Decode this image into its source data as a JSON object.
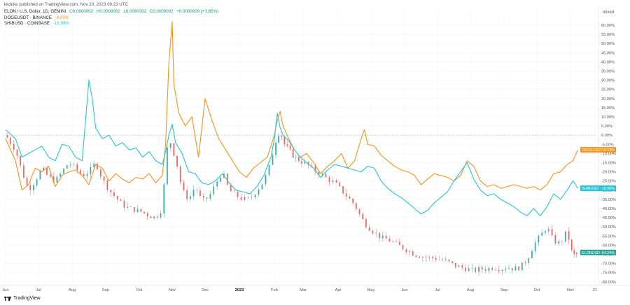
{
  "header": {
    "published_text": "kkduke published on TradingView.com, Nov 20, 2023 09:23 UTC"
  },
  "legend": {
    "main": {
      "symbol": "ELON / U.S. Dollar, 1D, GEMINI",
      "o": "O0.0000002",
      "h": "H0.0000002",
      "l": "L0.0000002",
      "c": "C0.0000002",
      "change": "+0.0000000 (+3.85%)"
    },
    "doge": {
      "name": "DOGEUSDT · BINANCE",
      "change": "-8.03%"
    },
    "shib": {
      "name": "SHIBUSD · COINBASE",
      "change": "-18.99%"
    }
  },
  "mode_label": "mixed",
  "footer": {
    "brand": "TradingView"
  },
  "colors": {
    "doge": "#f7931a",
    "shib": "#26c6da",
    "up": "#26a69a",
    "down": "#ef5350",
    "elon_badge": "#26a69a"
  },
  "chart_data": {
    "type": "line",
    "title": "ELON / U.S. Dollar, 1D, GEMINI",
    "ylabel": "",
    "y_unit": "%",
    "ylim": [
      -80,
      60
    ],
    "yticks": [
      "60.00%",
      "55.00%",
      "50.00%",
      "45.00%",
      "40.00%",
      "35.00%",
      "30.00%",
      "25.00%",
      "20.00%",
      "15.00%",
      "10.00%",
      "5.00%",
      "0.00%",
      "-5.00%",
      "-10.00%",
      "-15.00%",
      "-20.00%",
      "-25.00%",
      "-30.00%",
      "-35.00%",
      "-40.00%",
      "-45.00%",
      "-50.00%",
      "-55.00%",
      "-60.00%",
      "-65.00%",
      "-70.00%",
      "-75.00%",
      "-80.00%"
    ],
    "xticks": [
      {
        "label": "Jun",
        "bold": false
      },
      {
        "label": "Jul",
        "bold": false
      },
      {
        "label": "Aug",
        "bold": false
      },
      {
        "label": "Sep",
        "bold": false
      },
      {
        "label": "Oct",
        "bold": false
      },
      {
        "label": "Nov",
        "bold": false
      },
      {
        "label": "Dec",
        "bold": false
      },
      {
        "label": "2023",
        "bold": true
      },
      {
        "label": "Feb",
        "bold": false
      },
      {
        "label": "Mar",
        "bold": false
      },
      {
        "label": "Apr",
        "bold": false
      },
      {
        "label": "May",
        "bold": false
      },
      {
        "label": "Jun",
        "bold": false
      },
      {
        "label": "Jul",
        "bold": false
      },
      {
        "label": "Aug",
        "bold": false
      },
      {
        "label": "Sep",
        "bold": false
      },
      {
        "label": "Oct",
        "bold": false
      },
      {
        "label": "Nov",
        "bold": false
      },
      {
        "label": "21",
        "bold": false
      }
    ],
    "x_months_index": [
      0,
      1,
      2,
      3,
      4,
      5,
      6,
      7,
      8,
      9,
      10,
      11,
      12,
      13,
      14,
      15,
      16,
      17,
      17.7
    ],
    "series": [
      {
        "name": "DOGEUSDT",
        "color": "#f7931a",
        "last_label": "DOGEUSDT",
        "last_value": "-8.03%",
        "values": [
          [
            0,
            -2
          ],
          [
            0.3,
            -14
          ],
          [
            0.5,
            -30
          ],
          [
            0.7,
            -27
          ],
          [
            0.9,
            -18
          ],
          [
            1.1,
            -20
          ],
          [
            1.3,
            -17
          ],
          [
            1.5,
            -28
          ],
          [
            1.7,
            -22
          ],
          [
            1.9,
            -20
          ],
          [
            2.1,
            -19
          ],
          [
            2.3,
            -22
          ],
          [
            2.5,
            -27
          ],
          [
            2.7,
            -16
          ],
          [
            2.9,
            -18
          ],
          [
            3.1,
            -25
          ],
          [
            3.3,
            -21
          ],
          [
            3.5,
            -24
          ],
          [
            3.7,
            -26
          ],
          [
            3.9,
            -23
          ],
          [
            4.1,
            -24
          ],
          [
            4.3,
            -21
          ],
          [
            4.5,
            -26
          ],
          [
            4.7,
            -22
          ],
          [
            4.8,
            -5
          ],
          [
            4.9,
            40
          ],
          [
            5.0,
            62
          ],
          [
            5.05,
            28
          ],
          [
            5.2,
            12
          ],
          [
            5.4,
            5
          ],
          [
            5.6,
            10
          ],
          [
            5.8,
            -12
          ],
          [
            6.0,
            20
          ],
          [
            6.2,
            8
          ],
          [
            6.4,
            -2
          ],
          [
            6.6,
            -8
          ],
          [
            6.8,
            -14
          ],
          [
            7.0,
            -20
          ],
          [
            7.2,
            -23
          ],
          [
            7.4,
            -18
          ],
          [
            7.6,
            -15
          ],
          [
            7.8,
            -12
          ],
          [
            8.0,
            0
          ],
          [
            8.1,
            8
          ],
          [
            8.2,
            13
          ],
          [
            8.3,
            5
          ],
          [
            8.5,
            -2
          ],
          [
            8.7,
            -8
          ],
          [
            8.9,
            -12
          ],
          [
            9.1,
            -10
          ],
          [
            9.3,
            -15
          ],
          [
            9.5,
            -21
          ],
          [
            9.7,
            -17
          ],
          [
            9.9,
            -14
          ],
          [
            10.1,
            -10
          ],
          [
            10.3,
            -18
          ],
          [
            10.5,
            -14
          ],
          [
            10.7,
            -2
          ],
          [
            10.8,
            3
          ],
          [
            10.9,
            -5
          ],
          [
            11.1,
            -6
          ],
          [
            11.3,
            -11
          ],
          [
            11.5,
            -14
          ],
          [
            11.7,
            -17
          ],
          [
            11.9,
            -19
          ],
          [
            12.1,
            -20
          ],
          [
            12.3,
            -22
          ],
          [
            12.5,
            -27
          ],
          [
            12.7,
            -24
          ],
          [
            12.9,
            -21
          ],
          [
            13.1,
            -22
          ],
          [
            13.3,
            -23
          ],
          [
            13.5,
            -25
          ],
          [
            13.7,
            -22
          ],
          [
            13.9,
            -14
          ],
          [
            14.1,
            -17
          ],
          [
            14.3,
            -25
          ],
          [
            14.5,
            -28
          ],
          [
            14.7,
            -27
          ],
          [
            14.9,
            -29
          ],
          [
            15.1,
            -28
          ],
          [
            15.3,
            -27
          ],
          [
            15.5,
            -28
          ],
          [
            15.7,
            -29
          ],
          [
            15.9,
            -28
          ],
          [
            16.1,
            -30
          ],
          [
            16.3,
            -27
          ],
          [
            16.5,
            -21
          ],
          [
            16.7,
            -20
          ],
          [
            16.9,
            -16
          ],
          [
            17.1,
            -14
          ],
          [
            17.3,
            -8
          ]
        ]
      },
      {
        "name": "SHIBUSD",
        "color": "#26c6da",
        "last_label": "SHIBUSD",
        "last_value": "-18.99%",
        "values": [
          [
            0,
            3
          ],
          [
            0.3,
            -2
          ],
          [
            0.5,
            -12
          ],
          [
            0.7,
            -10
          ],
          [
            0.9,
            -8
          ],
          [
            1.1,
            -6
          ],
          [
            1.3,
            -12
          ],
          [
            1.5,
            -14
          ],
          [
            1.7,
            -5
          ],
          [
            1.9,
            -6
          ],
          [
            2.1,
            -12
          ],
          [
            2.3,
            -14
          ],
          [
            2.5,
            30
          ],
          [
            2.6,
            20
          ],
          [
            2.7,
            4
          ],
          [
            2.9,
            -2
          ],
          [
            3.1,
            0
          ],
          [
            3.3,
            -6
          ],
          [
            3.5,
            -4
          ],
          [
            3.7,
            -8
          ],
          [
            3.9,
            -7
          ],
          [
            4.1,
            -12
          ],
          [
            4.3,
            -9
          ],
          [
            4.5,
            -14
          ],
          [
            4.7,
            -16
          ],
          [
            4.8,
            -9
          ],
          [
            4.9,
            0
          ],
          [
            5.0,
            6
          ],
          [
            5.1,
            -4
          ],
          [
            5.3,
            -10
          ],
          [
            5.5,
            -20
          ],
          [
            5.7,
            -21
          ],
          [
            5.9,
            -26
          ],
          [
            6.1,
            -27
          ],
          [
            6.3,
            -25
          ],
          [
            6.5,
            -21
          ],
          [
            6.7,
            -26
          ],
          [
            6.9,
            -30
          ],
          [
            7.1,
            -31
          ],
          [
            7.3,
            -32
          ],
          [
            7.5,
            -28
          ],
          [
            7.7,
            -22
          ],
          [
            7.9,
            -12
          ],
          [
            8.0,
            -2
          ],
          [
            8.1,
            12
          ],
          [
            8.2,
            4
          ],
          [
            8.3,
            0
          ],
          [
            8.5,
            -3
          ],
          [
            8.7,
            -8
          ],
          [
            8.9,
            -12
          ],
          [
            9.1,
            -15
          ],
          [
            9.3,
            -18
          ],
          [
            9.5,
            -23
          ],
          [
            9.7,
            -19
          ],
          [
            9.9,
            -16
          ],
          [
            10.1,
            -17
          ],
          [
            10.3,
            -18
          ],
          [
            10.5,
            -19
          ],
          [
            10.7,
            -20
          ],
          [
            10.9,
            -17
          ],
          [
            11.1,
            -18
          ],
          [
            11.3,
            -25
          ],
          [
            11.5,
            -29
          ],
          [
            11.7,
            -32
          ],
          [
            11.9,
            -34
          ],
          [
            12.1,
            -37
          ],
          [
            12.3,
            -40
          ],
          [
            12.5,
            -43
          ],
          [
            12.7,
            -41
          ],
          [
            12.9,
            -37
          ],
          [
            13.1,
            -34
          ],
          [
            13.3,
            -31
          ],
          [
            13.5,
            -25
          ],
          [
            13.7,
            -20
          ],
          [
            13.9,
            -15
          ],
          [
            14.1,
            -24
          ],
          [
            14.3,
            -30
          ],
          [
            14.5,
            -33
          ],
          [
            14.7,
            -32
          ],
          [
            14.9,
            -35
          ],
          [
            15.1,
            -37
          ],
          [
            15.3,
            -39
          ],
          [
            15.5,
            -42
          ],
          [
            15.7,
            -44
          ],
          [
            15.9,
            -40
          ],
          [
            16.1,
            -44
          ],
          [
            16.3,
            -39
          ],
          [
            16.5,
            -32
          ],
          [
            16.7,
            -35
          ],
          [
            16.9,
            -30
          ],
          [
            17.1,
            -25
          ],
          [
            17.3,
            -29
          ]
        ]
      },
      {
        "name": "ELON",
        "color": "#ef5350",
        "last_label": "ELONUSD",
        "last_value": "-64.24%",
        "values": [
          [
            0,
            0
          ],
          [
            0.3,
            -8
          ],
          [
            0.5,
            -20
          ],
          [
            0.7,
            -30
          ],
          [
            0.9,
            -25
          ],
          [
            1.1,
            -18
          ],
          [
            1.3,
            -23
          ],
          [
            1.5,
            -25
          ],
          [
            1.7,
            -20
          ],
          [
            1.9,
            -15
          ],
          [
            2.1,
            -18
          ],
          [
            2.3,
            -22
          ],
          [
            2.5,
            -20
          ],
          [
            2.7,
            -15
          ],
          [
            2.9,
            -24
          ],
          [
            3.1,
            -30
          ],
          [
            3.3,
            -34
          ],
          [
            3.5,
            -38
          ],
          [
            3.7,
            -40
          ],
          [
            3.9,
            -41
          ],
          [
            4.1,
            -42
          ],
          [
            4.3,
            -44
          ],
          [
            4.5,
            -45
          ],
          [
            4.7,
            -40
          ],
          [
            4.8,
            -15
          ],
          [
            4.9,
            0
          ],
          [
            5.0,
            -8
          ],
          [
            5.1,
            -12
          ],
          [
            5.3,
            -30
          ],
          [
            5.5,
            -35
          ],
          [
            5.7,
            -28
          ],
          [
            5.9,
            -36
          ],
          [
            6.1,
            -34
          ],
          [
            6.3,
            -27
          ],
          [
            6.5,
            -20
          ],
          [
            6.7,
            -30
          ],
          [
            6.9,
            -33
          ],
          [
            7.1,
            -35
          ],
          [
            7.3,
            -35
          ],
          [
            7.5,
            -30
          ],
          [
            7.7,
            -25
          ],
          [
            7.9,
            -15
          ],
          [
            8.0,
            -5
          ],
          [
            8.1,
            -1
          ],
          [
            8.2,
            3
          ],
          [
            8.3,
            -4
          ],
          [
            8.5,
            -8
          ],
          [
            8.7,
            -12
          ],
          [
            8.9,
            -14
          ],
          [
            9.1,
            -16
          ],
          [
            9.3,
            -19
          ],
          [
            9.5,
            -21
          ],
          [
            9.7,
            -24
          ],
          [
            9.9,
            -26
          ],
          [
            10.1,
            -30
          ],
          [
            10.3,
            -34
          ],
          [
            10.5,
            -38
          ],
          [
            10.7,
            -45
          ],
          [
            10.9,
            -50
          ],
          [
            11.1,
            -53
          ],
          [
            11.3,
            -56
          ],
          [
            11.5,
            -57
          ],
          [
            11.7,
            -59
          ],
          [
            11.9,
            -61
          ],
          [
            12.1,
            -63
          ],
          [
            12.3,
            -65
          ],
          [
            12.5,
            -66
          ],
          [
            12.7,
            -67
          ],
          [
            12.9,
            -67
          ],
          [
            13.1,
            -68
          ],
          [
            13.3,
            -69
          ],
          [
            13.5,
            -71
          ],
          [
            13.7,
            -72
          ],
          [
            13.9,
            -73
          ],
          [
            14.1,
            -74
          ],
          [
            14.3,
            -73
          ],
          [
            14.5,
            -73
          ],
          [
            14.7,
            -72
          ],
          [
            14.9,
            -73
          ],
          [
            15.1,
            -72
          ],
          [
            15.3,
            -73
          ],
          [
            15.5,
            -72
          ],
          [
            15.7,
            -68
          ],
          [
            15.9,
            -60
          ],
          [
            16.1,
            -55
          ],
          [
            16.3,
            -50
          ],
          [
            16.5,
            -58
          ],
          [
            16.7,
            -59
          ],
          [
            16.9,
            -52
          ],
          [
            17.0,
            -61
          ],
          [
            17.1,
            -66
          ],
          [
            17.3,
            -64
          ]
        ]
      }
    ]
  }
}
